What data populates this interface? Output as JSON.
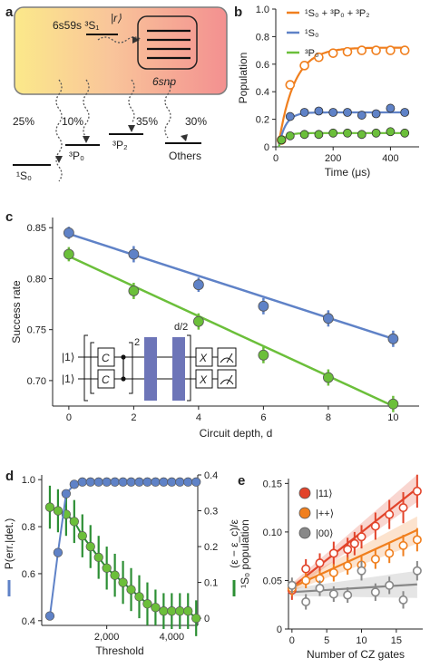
{
  "panel_a": {
    "label": "a",
    "state_upper": "6s59s ³S₁",
    "rydberg_ket": "|r⟩",
    "snp": "6snp",
    "branches": [
      {
        "pct": "25%",
        "level": "¹S₀"
      },
      {
        "pct": "10%",
        "level": "³P₀"
      },
      {
        "pct": "35%",
        "level": "³P₂"
      },
      {
        "pct": "30%",
        "level": "Others"
      }
    ]
  },
  "panel_c_inset": {
    "ket1": "|1⟩",
    "ket2": "|1⟩",
    "gate_c": "C",
    "gate_x": "X",
    "exp_2": "2",
    "exp_d2": "d/2"
  },
  "colors": {
    "orange": "#f07f1e",
    "blue": "#5f82c7",
    "green": "#6bbf3a",
    "darkgreen": "#2c8f34",
    "red": "#e2442b",
    "gray": "#888888",
    "band": "#6d75b8"
  },
  "chart_data": [
    {
      "panel": "b",
      "type": "scatter",
      "xlabel": "Time (μs)",
      "ylabel": "Population",
      "xlim": [
        0,
        500
      ],
      "ylim": [
        0,
        1.0
      ],
      "xticks": [
        "0",
        "200",
        "400"
      ],
      "yticks": [
        "0",
        "0.2",
        "0.4",
        "0.6",
        "0.8",
        "1.0"
      ],
      "legend_position": "top-left",
      "series": [
        {
          "name": "¹S₀ + ³P₀ + ³P₂",
          "color": "orange",
          "marker": "open",
          "x": [
            20,
            50,
            100,
            150,
            200,
            250,
            300,
            350,
            400,
            450
          ],
          "y": [
            0.05,
            0.45,
            0.59,
            0.65,
            0.68,
            0.69,
            0.7,
            0.7,
            0.7,
            0.7
          ],
          "fit": {
            "amp": 0.7,
            "tau": 55,
            "y0": 0.02
          }
        },
        {
          "name": "¹S₀",
          "color": "blue",
          "marker": "filled",
          "x": [
            20,
            50,
            100,
            150,
            200,
            250,
            300,
            350,
            400,
            450
          ],
          "y": [
            0.05,
            0.22,
            0.25,
            0.26,
            0.25,
            0.25,
            0.23,
            0.24,
            0.28,
            0.25
          ],
          "fit": {
            "amp": 0.25,
            "tau": 25,
            "y0": 0.0
          }
        },
        {
          "name": "³P₀",
          "color": "green",
          "marker": "filled",
          "x": [
            20,
            50,
            100,
            150,
            200,
            250,
            300,
            350,
            400,
            450
          ],
          "y": [
            0.05,
            0.08,
            0.09,
            0.09,
            0.1,
            0.1,
            0.09,
            0.1,
            0.11,
            0.1
          ],
          "fit": {
            "amp": 0.1,
            "tau": 20,
            "y0": 0.0
          }
        }
      ]
    },
    {
      "panel": "c",
      "type": "line",
      "xlabel": "Circuit depth, d",
      "ylabel": "Success rate",
      "xlim": [
        -0.5,
        10.8
      ],
      "ylim": [
        0.675,
        0.86
      ],
      "xticks": [
        "0",
        "2",
        "4",
        "6",
        "8",
        "10"
      ],
      "yticks": [
        "0.70",
        "0.75",
        "0.80",
        "0.85"
      ],
      "series": [
        {
          "color": "blue",
          "x": [
            0,
            2,
            4,
            6,
            8,
            10
          ],
          "y": [
            0.845,
            0.824,
            0.794,
            0.773,
            0.761,
            0.741
          ],
          "err": [
            0.006,
            0.008,
            0.007,
            0.008,
            0.008,
            0.008
          ],
          "fit": [
            0.844,
            0.741
          ]
        },
        {
          "color": "green",
          "x": [
            0,
            2,
            4,
            6,
            8,
            10
          ],
          "y": [
            0.824,
            0.788,
            0.758,
            0.725,
            0.703,
            0.677
          ],
          "err": [
            0.007,
            0.008,
            0.008,
            0.008,
            0.008,
            0.008
          ],
          "fit": [
            0.822,
            0.675
          ]
        }
      ]
    },
    {
      "panel": "d",
      "type": "line",
      "xlabel": "Threshold",
      "ylabel_left": "P(err.|det.)",
      "ylabel_right": "(ε − ε_c)/ε",
      "xlim": [
        0,
        4800
      ],
      "ylim_left": [
        0.38,
        1.02
      ],
      "ylim_right": [
        -0.02,
        0.4
      ],
      "xticks": [
        "2,000",
        "4,000"
      ],
      "yticks_left": [
        "0.4",
        "0.6",
        "0.8",
        "1.0"
      ],
      "yticks_right": [
        "0",
        "0.1",
        "0.2",
        "0.3",
        "0.4"
      ],
      "series": [
        {
          "name": "P(err.|det.)",
          "color": "blue",
          "axis": "left",
          "x": [
            250,
            500,
            750,
            1000,
            1250,
            1500,
            1750,
            2000,
            2250,
            2500,
            2750,
            3000,
            3250,
            3500,
            3750,
            4000,
            4250,
            4500,
            4750
          ],
          "y": [
            0.42,
            0.69,
            0.94,
            0.98,
            0.99,
            0.99,
            0.99,
            0.99,
            0.99,
            0.99,
            0.99,
            0.99,
            0.99,
            0.99,
            0.99,
            0.99,
            0.99,
            0.99,
            0.99
          ]
        },
        {
          "name": "(ε − ε_c)/ε",
          "color": "darkgreen",
          "axis": "right",
          "x": [
            250,
            500,
            750,
            1000,
            1250,
            1500,
            1750,
            2000,
            2250,
            2500,
            2750,
            3000,
            3250,
            3500,
            3750,
            4000,
            4250,
            4500,
            4750
          ],
          "y": [
            0.31,
            0.3,
            0.29,
            0.27,
            0.23,
            0.2,
            0.17,
            0.14,
            0.12,
            0.1,
            0.08,
            0.06,
            0.04,
            0.03,
            0.02,
            0.02,
            0.02,
            0.02,
            0.0
          ],
          "err": [
            0.06,
            0.06,
            0.06,
            0.06,
            0.06,
            0.06,
            0.06,
            0.06,
            0.06,
            0.06,
            0.06,
            0.06,
            0.06,
            0.05,
            0.05,
            0.05,
            0.05,
            0.05,
            0.05
          ]
        }
      ]
    },
    {
      "panel": "e",
      "type": "scatter",
      "xlabel": "Number of CZ gates",
      "ylabel": "¹S₀ population",
      "xlim": [
        -0.5,
        18.8
      ],
      "ylim": [
        0.0,
        0.155
      ],
      "xticks": [
        "0",
        "5",
        "10",
        "15"
      ],
      "yticks": [
        "0",
        "0.05",
        "0.10",
        "0.15"
      ],
      "legend_position": "top-left",
      "series": [
        {
          "name": "|11⟩",
          "color": "red",
          "x": [
            0,
            2,
            4,
            6,
            8,
            9,
            10,
            12,
            14,
            16,
            18
          ],
          "y": [
            0.04,
            0.062,
            0.068,
            0.078,
            0.082,
            0.088,
            0.095,
            0.106,
            0.118,
            0.125,
            0.142
          ],
          "err": [
            0.01,
            0.01,
            0.01,
            0.012,
            0.012,
            0.012,
            0.012,
            0.014,
            0.015,
            0.016,
            0.017
          ],
          "fit": [
            0.043,
            0.145
          ]
        },
        {
          "name": "|++⟩",
          "color": "orange",
          "x": [
            0,
            2,
            4,
            6,
            8,
            10,
            12,
            14,
            16,
            18
          ],
          "y": [
            0.042,
            0.05,
            0.052,
            0.058,
            0.065,
            0.066,
            0.072,
            0.078,
            0.086,
            0.092
          ],
          "err": [
            0.008,
            0.008,
            0.008,
            0.009,
            0.009,
            0.009,
            0.01,
            0.01,
            0.011,
            0.012
          ],
          "fit": [
            0.043,
            0.102
          ]
        },
        {
          "name": "|00⟩",
          "color": "gray",
          "x": [
            0,
            2,
            4,
            6,
            8,
            10,
            12,
            14,
            16,
            18
          ],
          "y": [
            0.045,
            0.028,
            0.042,
            0.036,
            0.035,
            0.06,
            0.038,
            0.045,
            0.03,
            0.06
          ],
          "err": [
            0.008,
            0.008,
            0.008,
            0.008,
            0.008,
            0.01,
            0.009,
            0.009,
            0.009,
            0.01
          ],
          "fit": [
            0.038,
            0.046
          ]
        }
      ]
    }
  ]
}
